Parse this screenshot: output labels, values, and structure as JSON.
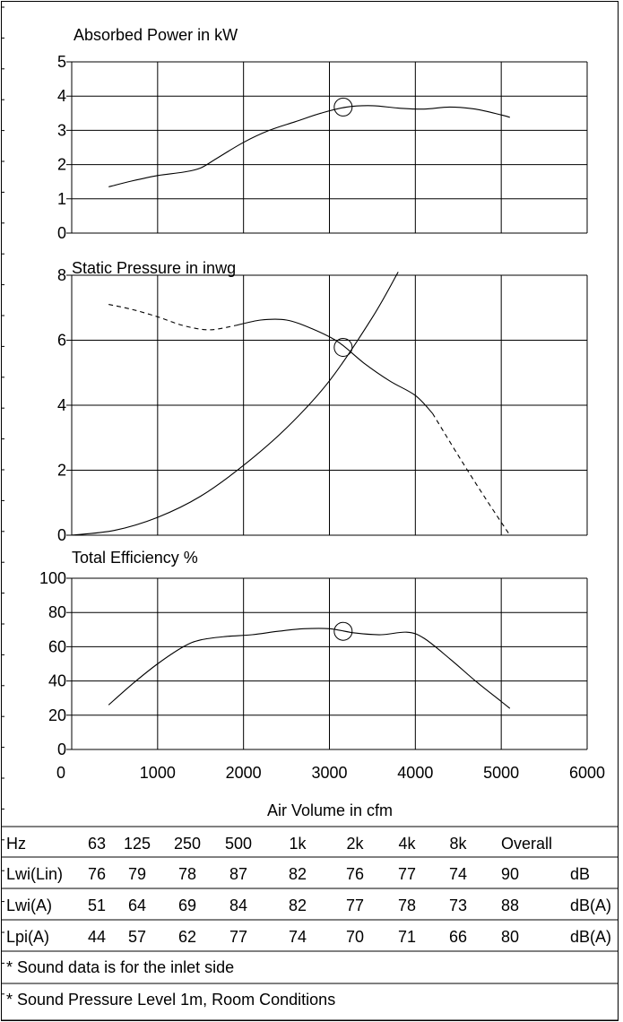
{
  "chart_data": [
    {
      "type": "line",
      "title": "Absorbed Power in kW",
      "ylim": [
        0,
        5
      ],
      "yticks": [
        "0",
        "1",
        "2",
        "3",
        "4",
        "5"
      ],
      "xlim": [
        0,
        6000
      ],
      "series": [
        {
          "line": "solid",
          "x": [
            430,
            700,
            1000,
            1300,
            1500,
            1700,
            2000,
            2300,
            2600,
            2900,
            3200,
            3500,
            3800,
            4100,
            4400,
            4700,
            5000,
            5100
          ],
          "y": [
            1.35,
            1.52,
            1.68,
            1.78,
            1.9,
            2.2,
            2.65,
            3.0,
            3.25,
            3.5,
            3.68,
            3.72,
            3.65,
            3.62,
            3.68,
            3.62,
            3.45,
            3.38
          ]
        }
      ],
      "operating_point": {
        "x": 3160,
        "y": 3.68
      }
    },
    {
      "type": "line",
      "title": "Static Pressure in inwg",
      "ylim": [
        0,
        8
      ],
      "yticks": [
        "0",
        "2",
        "4",
        "6",
        "8"
      ],
      "xlim": [
        0,
        6000
      ],
      "series": [
        {
          "line": "dashed",
          "x": [
            430,
            700,
            1000,
            1300,
            1600,
            1900
          ],
          "y": [
            7.1,
            6.95,
            6.72,
            6.45,
            6.32,
            6.45
          ]
        },
        {
          "line": "solid",
          "x": [
            1900,
            2200,
            2500,
            2800,
            3100,
            3400,
            3700,
            4000,
            4200
          ],
          "y": [
            6.45,
            6.62,
            6.62,
            6.35,
            5.95,
            5.3,
            4.75,
            4.3,
            3.75
          ]
        },
        {
          "line": "dashed",
          "x": [
            4200,
            4500,
            4800,
            5100
          ],
          "y": [
            3.75,
            2.45,
            1.2,
            0.0
          ]
        },
        {
          "line": "solid",
          "x": [
            0,
            500,
            1000,
            1500,
            2000,
            2500,
            3000,
            3500,
            3800
          ],
          "y": [
            0.0,
            0.15,
            0.55,
            1.2,
            2.15,
            3.3,
            4.75,
            6.7,
            8.1
          ]
        }
      ],
      "operating_point": {
        "x": 3160,
        "y": 5.78
      }
    },
    {
      "type": "line",
      "title": "Total Efficiency %",
      "ylim": [
        0,
        100
      ],
      "yticks": [
        "0",
        "20",
        "40",
        "60",
        "80",
        "100"
      ],
      "xlim": [
        0,
        6000
      ],
      "xticks": [
        "0",
        "1000",
        "2000",
        "3000",
        "4000",
        "5000",
        "6000"
      ],
      "xlabel": "Air Volume in cfm",
      "series": [
        {
          "line": "solid",
          "x": [
            430,
            700,
            1000,
            1300,
            1500,
            1800,
            2100,
            2400,
            2700,
            3000,
            3300,
            3600,
            3900,
            4100,
            4400,
            4700,
            5000,
            5100
          ],
          "y": [
            26,
            38,
            50,
            60,
            64,
            66,
            67,
            69,
            70.5,
            70.5,
            68,
            67,
            68.5,
            65,
            53,
            40,
            28,
            24
          ]
        }
      ],
      "operating_point": {
        "x": 3160,
        "y": 69
      }
    }
  ],
  "sound_table": {
    "headers": [
      "Hz",
      "63",
      "125",
      "250",
      "500",
      "1k",
      "2k",
      "4k",
      "8k",
      "Overall",
      ""
    ],
    "rows": [
      [
        "Lwi(Lin)",
        "76",
        "79",
        "78",
        "87",
        "82",
        "76",
        "77",
        "74",
        "90",
        "dB"
      ],
      [
        "Lwi(A)",
        "51",
        "64",
        "69",
        "84",
        "82",
        "77",
        "78",
        "73",
        "88",
        "dB(A)"
      ],
      [
        "Lpi(A)",
        "44",
        "57",
        "62",
        "77",
        "74",
        "70",
        "71",
        "66",
        "80",
        "dB(A)"
      ]
    ],
    "notes": [
      "* Sound data is for the inlet side",
      "* Sound Pressure Level 1m, Room Conditions"
    ]
  }
}
